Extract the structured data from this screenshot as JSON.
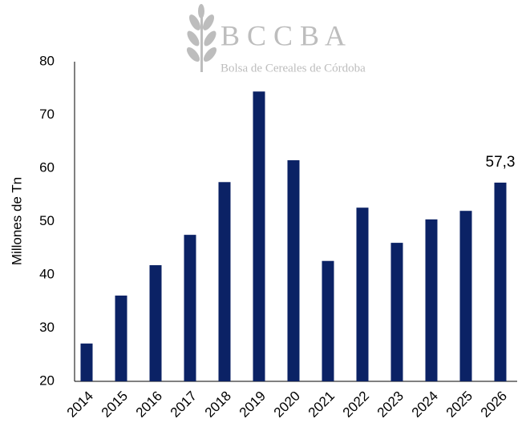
{
  "chart_data": {
    "type": "bar",
    "logo_text": [
      "B C C B A",
      "Bolsa de Cereales de Córdoba"
    ],
    "y_label": "Millones de Tn",
    "categories": [
      "2014",
      "2015",
      "2016",
      "2017",
      "2018",
      "2019",
      "2020",
      "2021",
      "2022",
      "2023",
      "2024",
      "2025",
      "2026"
    ],
    "values": [
      27.1,
      36.1,
      41.8,
      47.5,
      57.4,
      74.4,
      61.5,
      42.6,
      52.6,
      46,
      50.4,
      52,
      57.3
    ],
    "value_labels": [
      null,
      null,
      null,
      null,
      null,
      null,
      null,
      null,
      null,
      null,
      null,
      null,
      "57,3"
    ],
    "color": "#0b2265",
    "ylim": [
      20,
      80
    ],
    "yticks": [
      20,
      30,
      40,
      50,
      60,
      70,
      80
    ],
    "grid": false
  }
}
